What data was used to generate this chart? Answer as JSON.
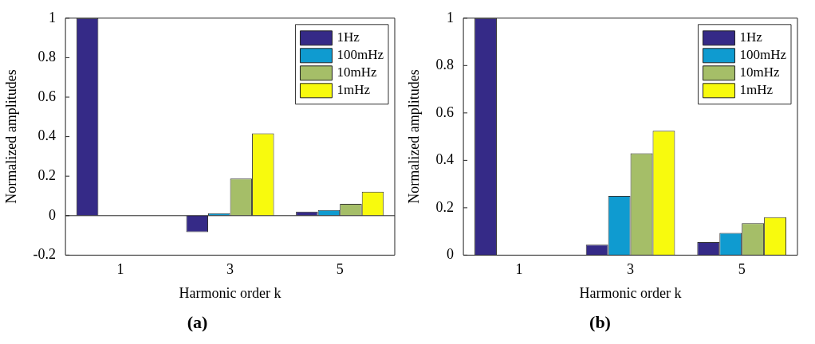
{
  "chart_data": [
    {
      "type": "bar",
      "title": "(a)",
      "xlabel": "Harmonic order k",
      "ylabel": "Normalized amplitudes",
      "categories": [
        "1",
        "3",
        "5"
      ],
      "ylim": [
        -0.2,
        1
      ],
      "yticks": [
        -0.2,
        0,
        0.2,
        0.4,
        0.6,
        0.8,
        1
      ],
      "grid": false,
      "ref_lines": [
        {
          "axis": "y",
          "value": 0,
          "color": "#222222"
        }
      ],
      "legend": "top right",
      "series": [
        {
          "name": "1Hz",
          "color": "#352a87",
          "values": [
            1,
            -0.083,
            0.02
          ]
        },
        {
          "name": "100mHz",
          "color": "#0f9bd0",
          "values": [
            0,
            0.012,
            0.028
          ]
        },
        {
          "name": "10mHz",
          "color": "#a5be68",
          "values": [
            0,
            0.188,
            0.06
          ]
        },
        {
          "name": "1mHz",
          "color": "#f8fa0d",
          "values": [
            0,
            0.417,
            0.121
          ]
        }
      ]
    },
    {
      "type": "bar",
      "title": "(b)",
      "xlabel": "Harmonic order k",
      "ylabel": "Normalized amplitudes",
      "categories": [
        "1",
        "3",
        "5"
      ],
      "ylim": [
        0,
        1
      ],
      "yticks": [
        0,
        0.2,
        0.4,
        0.6,
        0.8,
        1
      ],
      "grid": false,
      "legend": "top right",
      "series": [
        {
          "name": "1Hz",
          "color": "#352a87",
          "values": [
            1,
            0.044,
            0.055
          ]
        },
        {
          "name": "100mHz",
          "color": "#0f9bd0",
          "values": [
            0,
            0.25,
            0.094
          ]
        },
        {
          "name": "10mHz",
          "color": "#a5be68",
          "values": [
            0,
            0.43,
            0.135
          ]
        },
        {
          "name": "1mHz",
          "color": "#f8fa0d",
          "values": [
            0,
            0.525,
            0.16
          ]
        }
      ]
    }
  ]
}
